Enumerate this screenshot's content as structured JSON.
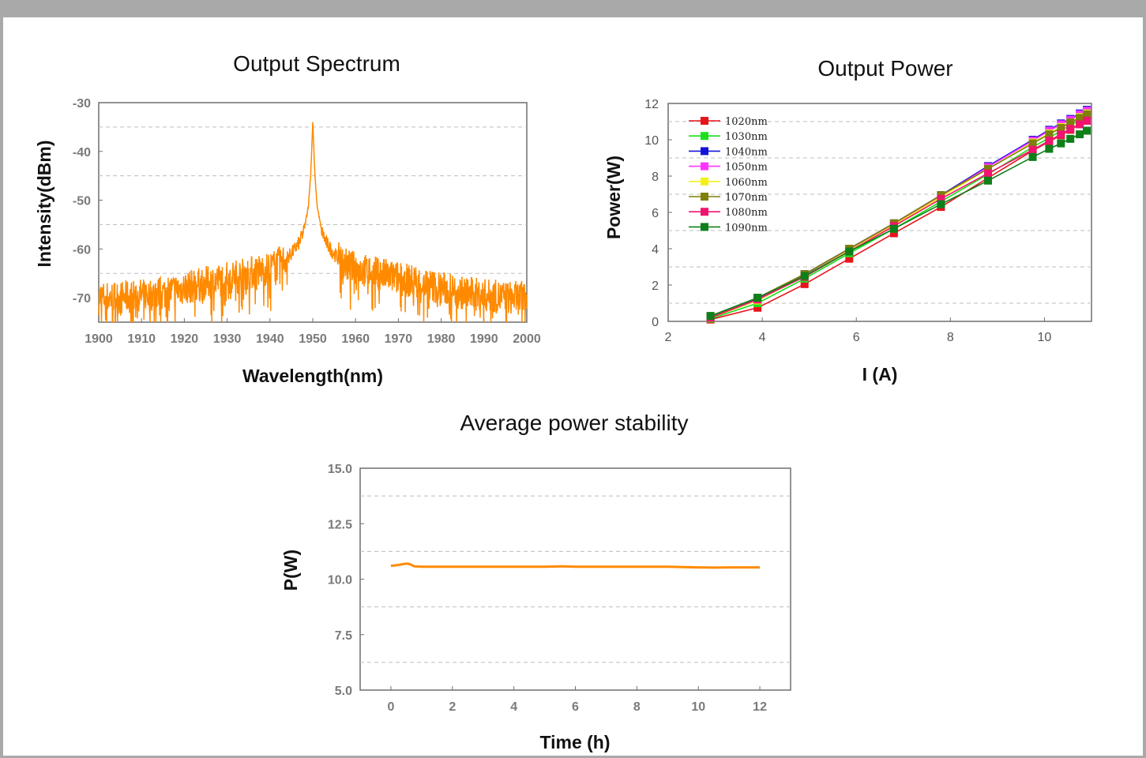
{
  "chart_data": [
    {
      "id": "spectrum",
      "type": "line",
      "title": "Output Spectrum",
      "xlabel": "Wavelength(nm)",
      "ylabel": "Intensity(dBm)",
      "xlim": [
        1900,
        2000
      ],
      "ylim": [
        -75,
        -30
      ],
      "xticks": [
        1900,
        1910,
        1920,
        1930,
        1940,
        1950,
        1960,
        1970,
        1980,
        1990,
        2000
      ],
      "yticks": [
        -30,
        -40,
        -50,
        -60,
        -70
      ],
      "grid": "dashed horizontal",
      "color": "#ff8a00",
      "series": [
        {
          "x": [
            1900,
            1905,
            1910,
            1915,
            1920,
            1925,
            1930,
            1935,
            1940,
            1943,
            1945,
            1947,
            1948,
            1949,
            1949.5,
            1950,
            1950.5,
            1951,
            1952,
            1953,
            1955,
            1957,
            1960,
            1965,
            1970,
            1975,
            1980,
            1985,
            1990,
            1995,
            2000
          ],
          "values": [
            -70,
            -70,
            -69.5,
            -69,
            -68,
            -67,
            -66,
            -65,
            -64,
            -62.5,
            -61,
            -58.5,
            -56,
            -51,
            -45,
            -34,
            -45,
            -51,
            -56,
            -58.5,
            -61,
            -63,
            -64,
            -65,
            -66,
            -67,
            -68,
            -69,
            -69.5,
            -70,
            -70
          ]
        }
      ]
    },
    {
      "id": "power",
      "type": "line",
      "title": "Output Power",
      "xlabel": "I (A)",
      "ylabel": "Power(W)",
      "xlim": [
        2,
        11
      ],
      "ylim": [
        0,
        12
      ],
      "xticks": [
        2,
        4,
        6,
        8,
        10
      ],
      "yticks": [
        0,
        2,
        4,
        6,
        8,
        10,
        12
      ],
      "grid": "dashed horizontal",
      "legend_position": "top-left",
      "x": [
        2.9,
        3.9,
        4.9,
        5.85,
        6.8,
        7.8,
        8.8,
        9.75,
        10.1,
        10.35,
        10.55,
        10.75,
        10.9
      ],
      "series": [
        {
          "name": "1020nm",
          "color": "#e8141c",
          "values": [
            0.1,
            0.75,
            2.05,
            3.45,
            4.85,
            6.3,
            7.9,
            9.4,
            9.9,
            10.25,
            10.55,
            10.85,
            11.05
          ]
        },
        {
          "name": "1030nm",
          "color": "#1adf1a",
          "values": [
            0.15,
            1.0,
            2.35,
            3.75,
            5.1,
            6.6,
            8.1,
            9.6,
            10.1,
            10.5,
            10.8,
            11.1,
            11.3
          ]
        },
        {
          "name": "1040nm",
          "color": "#1414d8",
          "values": [
            0.2,
            1.25,
            2.6,
            4.0,
            5.4,
            6.95,
            8.55,
            10.0,
            10.55,
            10.9,
            11.15,
            11.45,
            11.65
          ]
        },
        {
          "name": "1050nm",
          "color": "#ff33ff",
          "values": [
            0.2,
            1.2,
            2.55,
            3.95,
            5.35,
            6.9,
            8.5,
            9.95,
            10.5,
            10.85,
            11.1,
            11.4,
            11.6
          ]
        },
        {
          "name": "1060nm",
          "color": "#f2f21a",
          "values": [
            0.2,
            1.15,
            2.5,
            3.9,
            5.3,
            6.85,
            8.4,
            9.85,
            10.35,
            10.7,
            10.95,
            11.25,
            11.45
          ]
        },
        {
          "name": "1070nm",
          "color": "#7f7f0a",
          "values": [
            0.25,
            1.3,
            2.6,
            4.0,
            5.4,
            6.95,
            8.4,
            9.8,
            10.3,
            10.65,
            10.95,
            11.2,
            11.4
          ]
        },
        {
          "name": "1080nm",
          "color": "#f0146e",
          "values": [
            0.2,
            1.2,
            2.45,
            3.85,
            5.25,
            6.75,
            8.15,
            9.45,
            9.95,
            10.3,
            10.6,
            10.85,
            11.05
          ]
        },
        {
          "name": "1090nm",
          "color": "#0f7f19",
          "values": [
            0.3,
            1.3,
            2.5,
            3.85,
            5.1,
            6.45,
            7.75,
            9.05,
            9.5,
            9.8,
            10.05,
            10.3,
            10.5
          ]
        }
      ]
    },
    {
      "id": "stability",
      "type": "line",
      "title": "Average power stability",
      "xlabel": "Time (h)",
      "ylabel": "P(W)",
      "xlim": [
        -1,
        13
      ],
      "ylim": [
        5,
        15
      ],
      "xticks": [
        0,
        2,
        4,
        6,
        8,
        10,
        12
      ],
      "yticks": [
        "15.0",
        "12.5",
        "10.0",
        "7.5",
        "5.0"
      ],
      "grid": "dashed horizontal",
      "color": "#ff8a00",
      "series": [
        {
          "x": [
            0,
            0.2,
            0.4,
            0.55,
            0.65,
            0.75,
            1,
            2,
            3,
            4,
            5,
            5.6,
            6,
            7,
            8,
            9,
            10,
            10.5,
            11,
            12
          ],
          "values": [
            10.6,
            10.63,
            10.68,
            10.7,
            10.66,
            10.58,
            10.56,
            10.56,
            10.56,
            10.56,
            10.56,
            10.58,
            10.56,
            10.56,
            10.56,
            10.56,
            10.53,
            10.52,
            10.53,
            10.53
          ]
        }
      ]
    }
  ]
}
